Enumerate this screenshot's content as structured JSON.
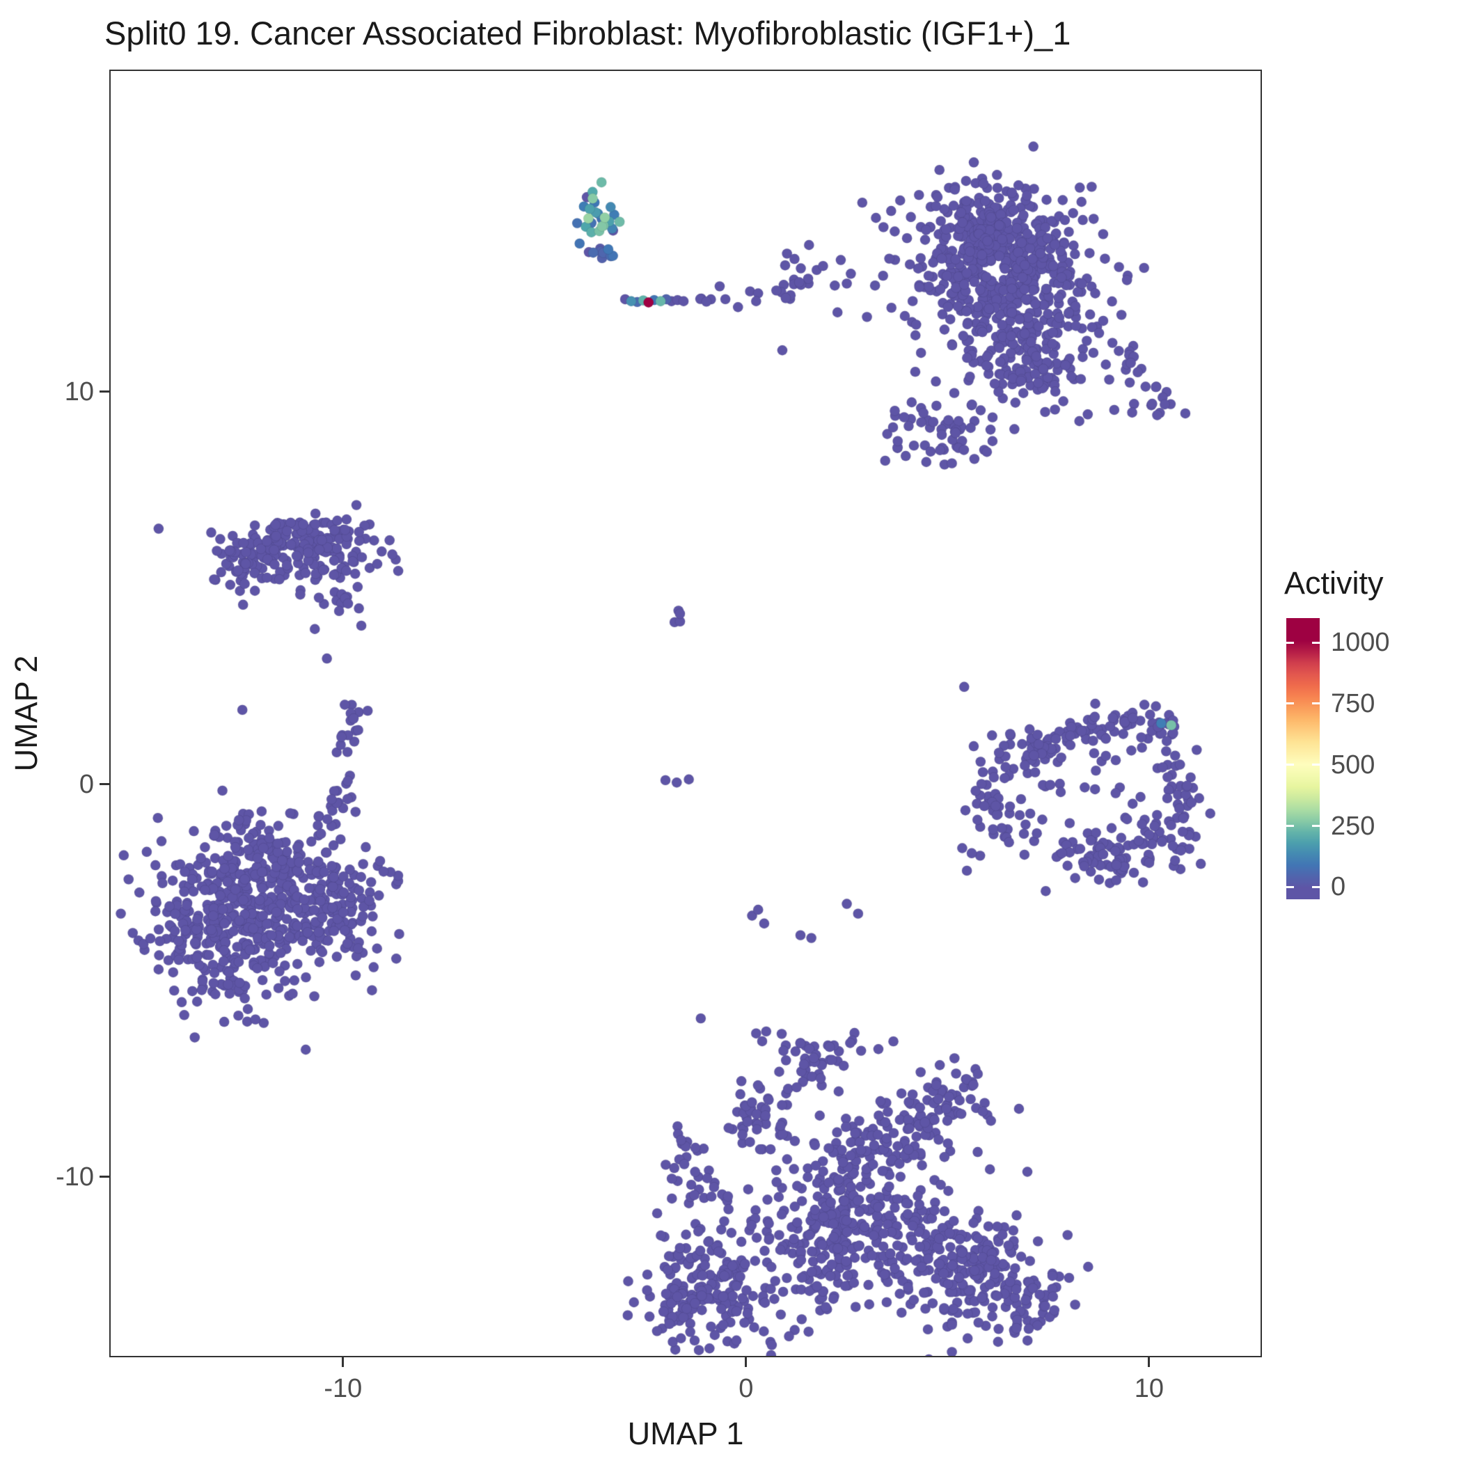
{
  "title": "Split0 19. Cancer Associated Fibroblast: Myofibroblastic (IGF1+)_1",
  "axes": {
    "x_label": "UMAP 1",
    "y_label": "UMAP 2",
    "x_ticks": [
      -10,
      0,
      10
    ],
    "y_ticks": [
      -10,
      0,
      10
    ]
  },
  "legend": {
    "title": "Activity",
    "position": "right",
    "ticks": [
      0,
      250,
      500,
      750,
      1000
    ],
    "bar_domain": [
      -50,
      1100
    ],
    "gradient_stops": [
      {
        "v": 0,
        "color": "#5E55A6"
      },
      {
        "v": 100,
        "color": "#3E79B6"
      },
      {
        "v": 200,
        "color": "#4FA8AB"
      },
      {
        "v": 300,
        "color": "#A0D8A4"
      },
      {
        "v": 400,
        "color": "#E4F49C"
      },
      {
        "v": 500,
        "color": "#FEFEBE"
      },
      {
        "v": 600,
        "color": "#FEE191"
      },
      {
        "v": 700,
        "color": "#FDB063"
      },
      {
        "v": 800,
        "color": "#F5764B"
      },
      {
        "v": 900,
        "color": "#DA4A4F"
      },
      {
        "v": 1000,
        "color": "#9E0142"
      }
    ]
  },
  "chart_data": {
    "type": "scatter",
    "title": "Split0 19. Cancer Associated Fibroblast: Myofibroblastic (IGF1+)_1",
    "xlabel": "UMAP 1",
    "ylabel": "UMAP 2",
    "color_by": "Activity",
    "color_domain": [
      0,
      1000
    ],
    "grid": false,
    "x_range": [
      -15.8,
      12.8
    ],
    "y_range": [
      -14.6,
      18.2
    ],
    "point_radius_px": 7.2,
    "default_activity": 0,
    "seed": 20,
    "clusters_format": "gaussian blobs {cx,cy,sx,sy,n,[act]} or line segments {type:'line',x1,y1,x2,y2,j,n}; act = activity range, default 0",
    "clusters": [
      {
        "name": "top-right-core",
        "cx": 6.4,
        "cy": 13.2,
        "sx": 1.0,
        "sy": 0.95,
        "n": 400
      },
      {
        "name": "top-right-upper",
        "cx": 5.9,
        "cy": 14.1,
        "sx": 0.6,
        "sy": 0.55,
        "n": 80
      },
      {
        "name": "top-right-lower",
        "cx": 6.9,
        "cy": 11.0,
        "sx": 0.8,
        "sy": 0.8,
        "n": 140
      },
      {
        "name": "top-right-halo",
        "cx": 6.3,
        "cy": 12.4,
        "sx": 1.7,
        "sy": 1.55,
        "n": 110
      },
      {
        "name": "top-right-southwest-lobe",
        "cx": 4.9,
        "cy": 8.9,
        "sx": 0.6,
        "sy": 0.45,
        "n": 55
      },
      {
        "name": "top-right-arm-a",
        "cx": 9.3,
        "cy": 10.7,
        "sx": 0.35,
        "sy": 0.3,
        "n": 12
      },
      {
        "name": "top-right-arm-b",
        "cx": 10.1,
        "cy": 9.7,
        "sx": 0.4,
        "sy": 0.25,
        "n": 16
      },
      {
        "name": "high-activity-island",
        "cx": -3.65,
        "cy": 14.4,
        "sx": 0.3,
        "sy": 0.45,
        "n": 24,
        "act": [
          60,
          300
        ]
      },
      {
        "name": "island-lower",
        "cx": -3.6,
        "cy": 13.75,
        "sx": 0.22,
        "sy": 0.28,
        "n": 8,
        "act": [
          0,
          110
        ]
      },
      {
        "name": "streak-neighbors",
        "cx": -0.85,
        "cy": 12.35,
        "sx": 0.3,
        "sy": 0.16,
        "n": 6
      },
      {
        "name": "mid-top-clump",
        "cx": 1.35,
        "cy": 12.9,
        "sx": 0.42,
        "sy": 0.38,
        "n": 20
      },
      {
        "name": "mid-left-main",
        "cx": -10.9,
        "cy": 5.9,
        "sx": 0.95,
        "sy": 0.42,
        "n": 150
      },
      {
        "name": "mid-left-west",
        "cx": -12.3,
        "cy": 5.7,
        "sx": 0.45,
        "sy": 0.35,
        "n": 45
      },
      {
        "name": "mid-left-top",
        "cx": -11.2,
        "cy": 6.35,
        "sx": 1.1,
        "sy": 0.28,
        "n": 30
      },
      {
        "name": "mid-left-tail-clump",
        "cx": -9.85,
        "cy": 4.45,
        "sx": 0.3,
        "sy": 0.22,
        "n": 10
      },
      {
        "name": "left-main",
        "cx": -12.6,
        "cy": -3.4,
        "sx": 1.15,
        "sy": 1.05,
        "n": 400
      },
      {
        "name": "left-east-lobe",
        "cx": -10.2,
        "cy": -2.9,
        "sx": 0.75,
        "sy": 0.65,
        "n": 120
      },
      {
        "name": "left-halo",
        "cx": -12.2,
        "cy": -3.2,
        "sx": 1.7,
        "sy": 1.45,
        "n": 90
      },
      {
        "name": "left-north-bump",
        "cx": -12.2,
        "cy": -1.5,
        "sx": 0.7,
        "sy": 0.4,
        "n": 50
      },
      {
        "name": "left-arm",
        "type": "line",
        "x1": -10.2,
        "y1": -0.9,
        "x2": -9.7,
        "y2": 1.9,
        "j": 0.17,
        "n": 24
      },
      {
        "name": "left-arm-top",
        "cx": -9.7,
        "cy": 1.75,
        "sx": 0.2,
        "sy": 0.18,
        "n": 6
      },
      {
        "name": "ring-west-blob",
        "cx": 6.35,
        "cy": -0.2,
        "sx": 0.5,
        "sy": 0.75,
        "n": 65
      },
      {
        "name": "ring-top-arc-a",
        "type": "line",
        "x1": 6.9,
        "y1": 0.9,
        "x2": 8.9,
        "y2": 1.55,
        "j": 0.22,
        "n": 50
      },
      {
        "name": "ring-top-arc-b",
        "type": "line",
        "x1": 8.9,
        "y1": 1.55,
        "x2": 10.5,
        "y2": 1.5,
        "j": 0.2,
        "n": 32
      },
      {
        "name": "ring-east-edge",
        "type": "line",
        "x1": 10.6,
        "y1": 1.2,
        "x2": 10.9,
        "y2": -0.6,
        "j": 0.22,
        "n": 28
      },
      {
        "name": "ring-southeast-blob",
        "cx": 10.3,
        "cy": -1.4,
        "sx": 0.5,
        "sy": 0.5,
        "n": 50
      },
      {
        "name": "ring-bottom-arc",
        "type": "line",
        "x1": 9.7,
        "y1": -2.0,
        "x2": 7.9,
        "y2": -1.5,
        "j": 0.28,
        "n": 38
      },
      {
        "name": "ring-bottom-blob",
        "cx": 8.7,
        "cy": -2.0,
        "sx": 0.5,
        "sy": 0.35,
        "n": 26
      },
      {
        "name": "ring-inner-sparse",
        "cx": 8.4,
        "cy": 0.1,
        "sx": 1.0,
        "sy": 0.8,
        "n": 26
      },
      {
        "name": "bottom-west",
        "cx": -0.7,
        "cy": -12.7,
        "sx": 0.85,
        "sy": 0.8,
        "n": 170
      },
      {
        "name": "bottom-west-tip",
        "cx": -1.7,
        "cy": -13.5,
        "sx": 0.35,
        "sy": 0.3,
        "n": 25
      },
      {
        "name": "bottom-west-upper-a",
        "cx": -1.5,
        "cy": -9.2,
        "sx": 0.3,
        "sy": 0.3,
        "n": 13
      },
      {
        "name": "bottom-west-upper-b",
        "cx": -1.0,
        "cy": -10.3,
        "sx": 0.32,
        "sy": 0.35,
        "n": 16
      },
      {
        "name": "bottom-northwest-arm",
        "cx": 0.35,
        "cy": -8.6,
        "sx": 0.5,
        "sy": 0.5,
        "n": 45
      },
      {
        "name": "bottom-north-clump",
        "cx": 1.5,
        "cy": -7.1,
        "sx": 0.45,
        "sy": 0.4,
        "n": 40
      },
      {
        "name": "bottom-north-small",
        "cx": 2.95,
        "cy": -6.6,
        "sx": 0.28,
        "sy": 0.2,
        "n": 6
      },
      {
        "name": "bottom-center",
        "cx": 2.3,
        "cy": -11.3,
        "sx": 0.95,
        "sy": 0.9,
        "n": 220
      },
      {
        "name": "bottom-center-top",
        "cx": 2.9,
        "cy": -9.4,
        "sx": 0.6,
        "sy": 0.5,
        "n": 55
      },
      {
        "name": "bottom-northeast-clump",
        "cx": 4.6,
        "cy": -8.4,
        "sx": 0.55,
        "sy": 0.5,
        "n": 70
      },
      {
        "name": "bottom-northeast-ext",
        "cx": 5.5,
        "cy": -7.7,
        "sx": 0.3,
        "sy": 0.3,
        "n": 14
      },
      {
        "name": "bottom-east",
        "cx": 5.6,
        "cy": -12.4,
        "sx": 0.95,
        "sy": 0.8,
        "n": 190
      },
      {
        "name": "bottom-far-east",
        "cx": 7.0,
        "cy": -13.2,
        "sx": 0.5,
        "sy": 0.45,
        "n": 40
      },
      {
        "name": "bottom-bridge",
        "cx": 4.0,
        "cy": -11.2,
        "sx": 0.7,
        "sy": 0.8,
        "n": 55
      },
      {
        "name": "bottom-halo",
        "cx": 2.5,
        "cy": -11.0,
        "sx": 2.3,
        "sy": 1.9,
        "n": 70
      },
      {
        "name": "center-sparse-pair",
        "cx": -1.65,
        "cy": 4.25,
        "sx": 0.15,
        "sy": 0.12,
        "n": 4
      }
    ],
    "points_format": "[x, y, activity]",
    "points": [
      [
        -3.0,
        12.35,
        0
      ],
      [
        -2.85,
        12.3,
        150
      ],
      [
        -2.7,
        12.28,
        60
      ],
      [
        -2.55,
        12.32,
        220
      ],
      [
        -2.42,
        12.27,
        1020
      ],
      [
        -2.28,
        12.33,
        90
      ],
      [
        -2.12,
        12.3,
        230
      ],
      [
        -1.98,
        12.35,
        40
      ],
      [
        -1.85,
        12.3,
        0
      ],
      [
        -1.7,
        12.33,
        0
      ],
      [
        -1.55,
        12.3,
        0
      ],
      [
        -3.95,
        14.95,
        0
      ],
      [
        -3.3,
        14.1,
        0
      ],
      [
        -3.9,
        13.55,
        0
      ],
      [
        0.1,
        12.55,
        0
      ],
      [
        0.3,
        12.5,
        0
      ],
      [
        0.25,
        12.3,
        0
      ],
      [
        2.35,
        13.35,
        0
      ],
      [
        2.6,
        13.0,
        0
      ],
      [
        2.5,
        12.75,
        0
      ],
      [
        0.9,
        11.05,
        0
      ],
      [
        -0.2,
        12.15,
        0
      ],
      [
        3.2,
        12.7,
        0
      ],
      [
        3.4,
        12.95,
        0
      ],
      [
        3.0,
        11.9,
        0
      ],
      [
        3.6,
        14.6,
        0
      ],
      [
        10.55,
        1.5,
        250
      ],
      [
        10.3,
        1.55,
        110
      ],
      [
        -10.6,
        4.75,
        0
      ],
      [
        -10.7,
        3.95,
        0
      ],
      [
        -10.4,
        3.2,
        0
      ],
      [
        -2.0,
        0.1,
        0
      ],
      [
        -1.72,
        0.04,
        0
      ],
      [
        -1.42,
        0.12,
        0
      ],
      [
        0.15,
        -3.35,
        0
      ],
      [
        0.45,
        -3.55,
        0
      ],
      [
        0.3,
        -3.2,
        0
      ],
      [
        1.35,
        -3.85,
        0
      ],
      [
        1.62,
        -3.92,
        0
      ],
      [
        2.5,
        -3.05,
        0
      ],
      [
        2.78,
        -3.3,
        0
      ],
      [
        0.25,
        -6.35,
        0
      ],
      [
        0.5,
        -6.3,
        0
      ],
      [
        0.4,
        -6.55,
        0
      ]
    ]
  }
}
